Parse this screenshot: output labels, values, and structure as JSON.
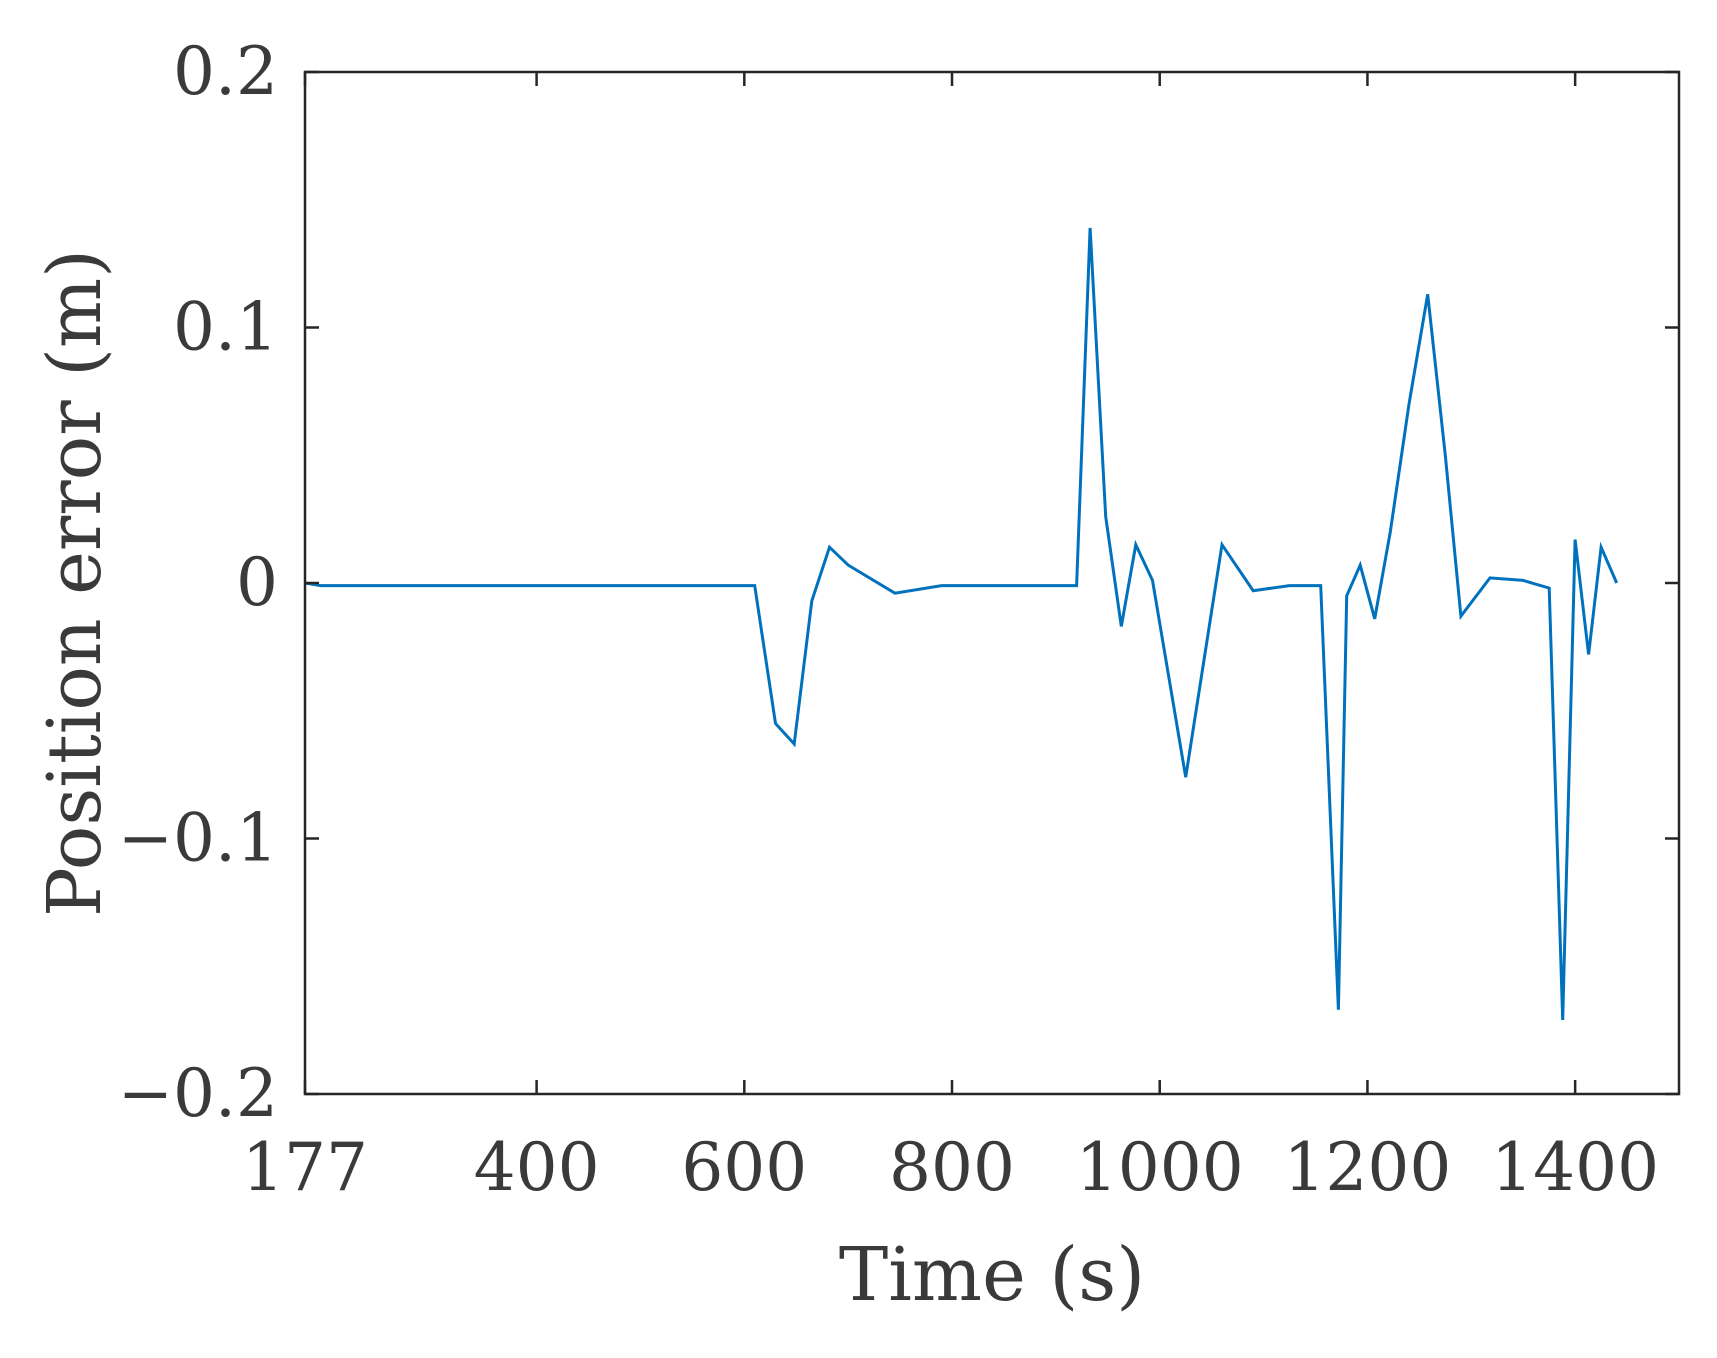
{
  "chart_data": {
    "type": "line",
    "title": "",
    "xlabel": "Time (s)",
    "ylabel": "Position error (m)",
    "xlim": [
      177,
      1500
    ],
    "ylim": [
      -0.2,
      0.2
    ],
    "x_ticks": [
      177,
      400,
      600,
      800,
      1000,
      1200,
      1400
    ],
    "x_tick_labels": [
      "177",
      "400",
      "600",
      "800",
      "1000",
      "1200",
      "1400"
    ],
    "y_ticks": [
      0.2,
      0.1,
      0,
      -0.1,
      -0.2
    ],
    "y_tick_labels": [
      "0.2",
      "0.1",
      "0",
      "−0.1",
      "−0.2"
    ],
    "grid": false,
    "legend": "none",
    "series": [
      {
        "color": "#0072BD",
        "x": [
          177,
          192,
          600,
          610,
          630,
          648,
          665,
          682,
          700,
          745,
          790,
          850,
          920,
          933,
          948,
          963,
          977,
          993,
          1025,
          1060,
          1090,
          1125,
          1155,
          1172,
          1180,
          1193,
          1207,
          1222,
          1240,
          1258,
          1275,
          1290,
          1318,
          1350,
          1375,
          1388,
          1400,
          1413,
          1425,
          1440
        ],
        "y": [
          0,
          -0.001,
          -0.001,
          -0.001,
          -0.055,
          -0.063,
          -0.007,
          0.014,
          0.007,
          -0.004,
          -0.001,
          -0.001,
          -0.001,
          0.139,
          0.026,
          -0.017,
          0.015,
          0.001,
          -0.076,
          0.015,
          -0.003,
          -0.001,
          -0.001,
          -0.167,
          -0.005,
          0.007,
          -0.014,
          0.02,
          0.07,
          0.113,
          0.05,
          -0.013,
          0.002,
          0.001,
          -0.002,
          -0.171,
          0.017,
          -0.028,
          0.014,
          0
        ]
      }
    ]
  }
}
